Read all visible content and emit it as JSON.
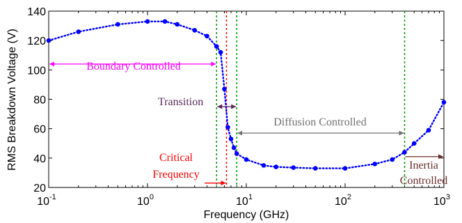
{
  "chart_data": {
    "type": "line",
    "xlabel": "Frequency (GHz)",
    "ylabel": "RMS Breakdown Voltage (V)",
    "xscale": "log",
    "xlim": [
      0.1,
      1000
    ],
    "ylim": [
      20,
      140
    ],
    "grid": false,
    "x_ticks": [
      {
        "base": "10",
        "exp": "-1",
        "value": 0.1
      },
      {
        "base": "10",
        "exp": "0",
        "value": 1
      },
      {
        "base": "10",
        "exp": "1",
        "value": 10
      },
      {
        "base": "10",
        "exp": "2",
        "value": 100
      },
      {
        "base": "10",
        "exp": "3",
        "value": 1000
      }
    ],
    "y_ticks": [
      "20",
      "40",
      "60",
      "80",
      "100",
      "120",
      "140"
    ],
    "series": [
      {
        "color": "#0000ff",
        "style": "dotted-line-with-markers",
        "x": [
          0.1,
          0.2,
          0.5,
          1.0,
          1.5,
          2.0,
          3.0,
          4.0,
          5.0,
          5.5,
          6.0,
          6.5,
          7.0,
          7.5,
          8.0,
          10,
          15,
          20,
          30,
          50,
          100,
          200,
          300,
          400,
          500,
          700,
          1000
        ],
        "y": [
          120,
          126,
          131,
          133,
          133,
          131,
          127,
          123,
          116,
          112,
          87,
          61,
          53,
          47,
          43,
          39,
          35,
          34,
          33.5,
          33,
          33,
          36,
          39,
          44,
          50,
          59,
          78
        ]
      }
    ],
    "vlines": [
      {
        "x": 5.0,
        "color": "#009900"
      },
      {
        "x": 6.3,
        "color": "#ff0000"
      },
      {
        "x": 8.0,
        "color": "#009900"
      },
      {
        "x": 400,
        "color": "#009900"
      }
    ],
    "annotations": [
      {
        "text": "Boundary Controlled",
        "color": "#ff00ff",
        "arrow": "double",
        "x_from": 0.1,
        "x_to": 5.0,
        "y": 104
      },
      {
        "text": "Transition",
        "color": "#5a2a5a",
        "arrow": "double",
        "x_from": 5.0,
        "x_to": 8.0,
        "y": 75
      },
      {
        "text": "Diffusion Controlled",
        "color": "#707070",
        "arrow": "double",
        "x_from": 8.0,
        "x_to": 400,
        "y": 57
      },
      {
        "text": "Inertia",
        "color": "#6b2e2e",
        "arrow": "right",
        "x_from": 400,
        "x_to": 1000,
        "y": 41
      },
      {
        "text": "Controlled",
        "color": "#6b2e2e"
      },
      {
        "text": "Critical",
        "color": "#ff0000"
      },
      {
        "text": "Frequency",
        "color": "#ff0000",
        "arrow": "right",
        "x_to": 6.3,
        "y": 23
      }
    ]
  }
}
